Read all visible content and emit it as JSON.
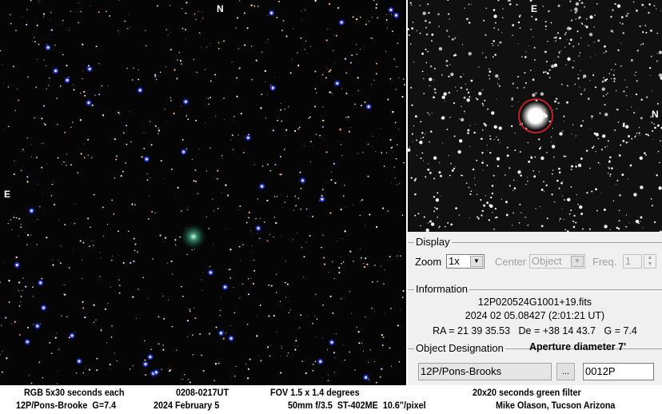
{
  "left_image": {
    "label_n": "N",
    "label_e": "E"
  },
  "right_image": {
    "label_e": "E",
    "label_n": "N",
    "aperture_color": "#c0202a"
  },
  "panel": {
    "display": {
      "title": "Display",
      "zoom_label": "Zoom",
      "zoom_value": "1x",
      "center_label": "Center",
      "center_value": "Object",
      "freq_label": "Freq.",
      "freq_value": "1"
    },
    "information": {
      "title": "Information",
      "filename": "12P020524G1001+19.fits",
      "date": "2024 02 05.08427 (2:01:21 UT)",
      "coords": "RA = 21 39 35.53   De = +38 14 43.7   G = 7.4"
    },
    "designation": {
      "title": "Object Designation",
      "aperture": "Aperture diameter 7'",
      "name_value": "12P/Pons-Brooks",
      "browse_label": "...",
      "code_value": "0012P"
    }
  },
  "caption": {
    "l1a": "RGB 5x30 seconds each",
    "l1b": "0208-0217UT",
    "l1c": "FOV 1.5 x 1.4 degrees",
    "l1d": "20x20 seconds green filter",
    "l2a": "12P/Pons-Brooke  G=7.4",
    "l2b": "2024 February 5",
    "l2c": "50mm f/3.5  ST-402ME  10.6\"/pixel",
    "l2d": "Mike Olason, Tucson Arizona"
  }
}
